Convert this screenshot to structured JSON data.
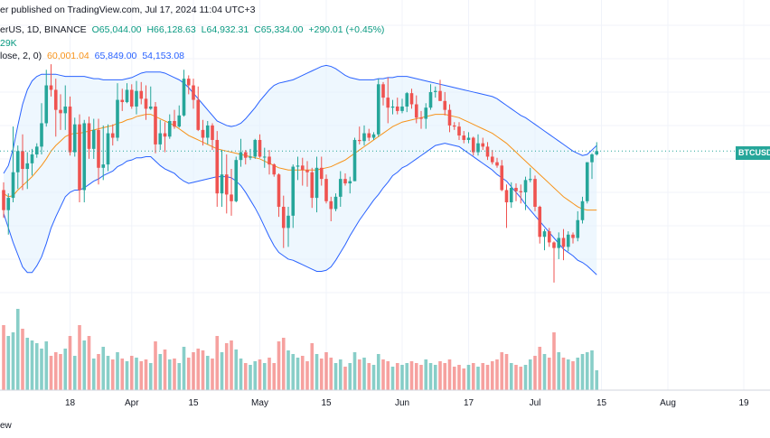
{
  "header": {
    "line1": "er published on TradingView.com, Jul 17, 2024 11:04 UTC+3",
    "line2_symbol": "erUS, 1D, BINANCE",
    "ohlc": {
      "o": "O65,044.00",
      "h": "H66,128.63",
      "l": "L64,932.31",
      "c": "C65,334.00",
      "chg": "+290.01 (+0.45%)"
    },
    "line3_volume": "29K",
    "line4_bb": "lose, 2, 0)",
    "bb_values": {
      "basis": "60,001.04",
      "upper": "65,849.00",
      "lower": "54,153.08"
    }
  },
  "price_tag": "BTCUSDT",
  "footer_text": "ew",
  "colors": {
    "up": "#26a69a",
    "down": "#ef5350",
    "basis": "#f7931a",
    "band": "#2962ff",
    "band_fill": "#e3f2fd"
  },
  "chart_data": {
    "type": "candlestick",
    "x_tick_labels": [
      "18",
      "Apr",
      "15",
      "May",
      "15",
      "Jun",
      "17",
      "Jul",
      "15",
      "Aug",
      "19"
    ],
    "candles": [
      [
        61.8,
        62.5,
        59.3,
        60.0
      ],
      [
        60.0,
        61.5,
        57.8,
        61.1
      ],
      [
        61.1,
        67.5,
        60.7,
        63.4
      ],
      [
        63.4,
        65.8,
        61.9,
        65.3
      ],
      [
        65.3,
        66.8,
        61.8,
        63.7
      ],
      [
        63.7,
        65.2,
        61.9,
        64.2
      ],
      [
        64.2,
        65.5,
        63.1,
        65.0
      ],
      [
        65.0,
        66.0,
        64.7,
        65.7
      ],
      [
        65.7,
        69.6,
        65.0,
        67.8
      ],
      [
        67.8,
        72.6,
        67.5,
        71.2
      ],
      [
        71.2,
        73.1,
        70.2,
        70.8
      ],
      [
        70.8,
        71.8,
        66.6,
        69.0
      ],
      [
        69.0,
        70.4,
        67.2,
        68.7
      ],
      [
        68.7,
        71.2,
        67.2,
        69.3
      ],
      [
        69.3,
        70.2,
        64.9,
        65.2
      ],
      [
        65.2,
        68.3,
        64.8,
        67.7
      ],
      [
        67.7,
        68.6,
        60.7,
        61.8
      ],
      [
        61.8,
        68.1,
        60.7,
        67.8
      ],
      [
        67.8,
        68.4,
        64.6,
        65.5
      ],
      [
        65.5,
        68.2,
        64.6,
        67.2
      ],
      [
        67.2,
        68.2,
        62.3,
        63.8
      ],
      [
        63.8,
        67.6,
        62.7,
        64.1
      ],
      [
        64.1,
        67.7,
        63.5,
        66.9
      ],
      [
        66.9,
        67.7,
        65.8,
        66.5
      ],
      [
        66.5,
        71.4,
        66.2,
        69.9
      ],
      [
        69.9,
        70.9,
        68.9,
        69.7
      ],
      [
        69.7,
        71.4,
        69.6,
        70.8
      ],
      [
        70.8,
        71.3,
        69.1,
        69.3
      ],
      [
        69.3,
        71.6,
        68.6,
        70.7
      ],
      [
        70.7,
        71.5,
        69.5,
        70.0
      ],
      [
        70.0,
        71.2,
        68.1,
        69.1
      ],
      [
        69.1,
        71.1,
        69.0,
        69.3
      ],
      [
        69.3,
        69.7,
        65.1,
        65.9
      ],
      [
        65.9,
        68.1,
        65.4,
        66.9
      ],
      [
        66.9,
        67.9,
        65.2,
        66.6
      ],
      [
        66.6,
        68.6,
        66.4,
        68.0
      ],
      [
        68.0,
        69.0,
        67.3,
        67.5
      ],
      [
        67.5,
        69.4,
        67.4,
        68.5
      ],
      [
        68.5,
        72.6,
        68.4,
        71.8
      ],
      [
        71.8,
        72.1,
        70.4,
        71.2
      ],
      [
        71.2,
        71.8,
        69.1,
        69.9
      ],
      [
        69.9,
        71.1,
        67.1,
        67.2
      ],
      [
        67.2,
        68.1,
        65.8,
        66.5
      ],
      [
        66.5,
        68.0,
        65.9,
        67.6
      ],
      [
        67.6,
        67.8,
        65.4,
        66.3
      ],
      [
        66.3,
        67.1,
        60.3,
        61.5
      ],
      [
        61.5,
        65.4,
        60.3,
        63.2
      ],
      [
        63.2,
        65.0,
        59.7,
        61.4
      ],
      [
        61.4,
        63.7,
        59.5,
        60.8
      ],
      [
        60.8,
        64.8,
        60.7,
        64.5
      ],
      [
        64.5,
        66.4,
        63.9,
        65.2
      ],
      [
        65.2,
        65.4,
        64.1,
        64.7
      ],
      [
        64.7,
        65.5,
        64.5,
        64.8
      ],
      [
        64.8,
        66.4,
        64.6,
        66.3
      ],
      [
        66.3,
        66.8,
        64.7,
        64.8
      ],
      [
        64.8,
        65.6,
        63.8,
        64.8
      ],
      [
        64.8,
        65.4,
        63.2,
        64.1
      ],
      [
        64.1,
        64.2,
        63.0,
        63.2
      ],
      [
        63.2,
        63.3,
        59.4,
        60.3
      ],
      [
        60.3,
        61.3,
        56.6,
        58.4
      ],
      [
        58.4,
        60.3,
        56.7,
        59.5
      ],
      [
        59.5,
        64.1,
        58.4,
        63.9
      ],
      [
        63.9,
        64.8,
        62.7,
        64.0
      ],
      [
        64.0,
        64.7,
        62.2,
        63.6
      ],
      [
        63.6,
        64.4,
        62.1,
        63.4
      ],
      [
        63.4,
        63.8,
        60.2,
        61.1
      ],
      [
        61.1,
        64.8,
        59.8,
        63.8
      ],
      [
        63.8,
        64.8,
        62.2,
        62.8
      ],
      [
        62.8,
        63.2,
        60.6,
        60.8
      ],
      [
        60.8,
        61.2,
        59.0,
        60.1
      ],
      [
        60.1,
        61.5,
        59.9,
        61.2
      ],
      [
        61.2,
        63.5,
        60.3,
        62.8
      ],
      [
        62.8,
        63.3,
        62.2,
        62.4
      ],
      [
        62.4,
        63.0,
        61.5,
        62.6
      ],
      [
        62.6,
        66.5,
        62.6,
        66.3
      ],
      [
        66.3,
        67.5,
        65.9,
        66.2
      ],
      [
        66.2,
        67.6,
        65.8,
        66.9
      ],
      [
        66.9,
        67.3,
        66.2,
        66.5
      ],
      [
        66.5,
        67.0,
        66.3,
        66.8
      ],
      [
        66.8,
        71.8,
        66.6,
        71.3
      ],
      [
        71.3,
        71.5,
        69.4,
        70.1
      ],
      [
        70.1,
        71.9,
        67.8,
        69.2
      ],
      [
        69.2,
        69.9,
        68.6,
        69.3
      ],
      [
        69.3,
        70.1,
        68.6,
        68.9
      ],
      [
        68.9,
        70.0,
        68.7,
        69.3
      ],
      [
        69.3,
        70.6,
        68.8,
        70.5
      ],
      [
        70.5,
        70.9,
        69.1,
        69.5
      ],
      [
        69.5,
        70.3,
        67.8,
        68.3
      ],
      [
        68.3,
        68.9,
        67.3,
        68.2
      ],
      [
        68.2,
        69.6,
        67.3,
        69.2
      ],
      [
        69.2,
        71.3,
        69.0,
        70.6
      ],
      [
        70.6,
        71.1,
        70.1,
        70.7
      ],
      [
        70.7,
        71.7,
        69.8,
        69.8
      ],
      [
        69.8,
        70.6,
        68.5,
        69.0
      ],
      [
        69.0,
        69.5,
        67.0,
        67.6
      ],
      [
        67.6,
        67.9,
        67.2,
        67.5
      ],
      [
        67.5,
        67.9,
        66.3,
        66.7
      ],
      [
        66.7,
        67.1,
        66.0,
        66.3
      ],
      [
        66.3,
        67.0,
        66.0,
        66.5
      ],
      [
        66.5,
        66.6,
        64.9,
        65.2
      ],
      [
        65.2,
        66.8,
        64.9,
        66.0
      ],
      [
        66.0,
        66.5,
        65.4,
        65.7
      ],
      [
        65.7,
        66.1,
        64.5,
        64.8
      ],
      [
        64.8,
        65.4,
        64.1,
        64.3
      ],
      [
        64.3,
        64.7,
        63.8,
        64.0
      ],
      [
        64.0,
        64.5,
        61.7,
        61.8
      ],
      [
        61.8,
        62.3,
        58.4,
        60.7
      ],
      [
        60.7,
        62.5,
        60.2,
        62.0
      ],
      [
        62.0,
        62.4,
        60.8,
        61.7
      ],
      [
        61.7,
        62.3,
        60.6,
        61.6
      ],
      [
        61.6,
        63.0,
        60.0,
        62.7
      ],
      [
        62.7,
        63.8,
        62.5,
        62.8
      ],
      [
        62.8,
        63.1,
        59.9,
        60.3
      ],
      [
        60.3,
        60.4,
        57.0,
        57.6
      ],
      [
        57.6,
        58.3,
        56.4,
        58.1
      ],
      [
        58.1,
        58.4,
        56.7,
        57.1
      ],
      [
        57.1,
        57.2,
        53.5,
        56.6
      ],
      [
        56.6,
        58.0,
        55.6,
        57.5
      ],
      [
        57.5,
        58.3,
        55.5,
        56.7
      ],
      [
        56.7,
        58.1,
        56.3,
        57.8
      ],
      [
        57.8,
        58.0,
        57.0,
        57.5
      ],
      [
        57.5,
        59.9,
        57.2,
        59.1
      ],
      [
        59.1,
        61.2,
        58.8,
        60.8
      ],
      [
        60.8,
        64.3,
        60.6,
        64.3
      ],
      [
        64.3,
        65.1,
        62.8,
        65.0
      ],
      [
        65.0,
        66.1,
        64.9,
        65.3
      ]
    ],
    "volumes": [
      72,
      60,
      64,
      90,
      68,
      58,
      55,
      52,
      46,
      54,
      38,
      42,
      40,
      46,
      60,
      38,
      72,
      55,
      60,
      35,
      40,
      48,
      38,
      34,
      42,
      35,
      32,
      38,
      36,
      32,
      34,
      30,
      54,
      40,
      45,
      34,
      35,
      30,
      48,
      36,
      42,
      46,
      44,
      38,
      35,
      60,
      42,
      52,
      55,
      45,
      35,
      30,
      28,
      32,
      34,
      30,
      36,
      30,
      54,
      58,
      44,
      40,
      36,
      38,
      32,
      52,
      40,
      35,
      42,
      36,
      30,
      34,
      26,
      30,
      42,
      34,
      36,
      30,
      28,
      40,
      34,
      32,
      26,
      30,
      28,
      30,
      32,
      30,
      28,
      34,
      30,
      28,
      32,
      30,
      34,
      26,
      28,
      24,
      28,
      30,
      26,
      30,
      28,
      32,
      34,
      42,
      40,
      30,
      28,
      26,
      28,
      34,
      38,
      48,
      40,
      36,
      64,
      42,
      36,
      34,
      32,
      36,
      40,
      42,
      44,
      22
    ],
    "basis": [
      61.5,
      61.2,
      61.3,
      61.8,
      62.2,
      62.6,
      63.0,
      63.5,
      64.0,
      64.6,
      65.3,
      65.8,
      66.2,
      66.6,
      66.8,
      66.9,
      66.9,
      67.0,
      67.1,
      67.2,
      67.3,
      67.4,
      67.5,
      67.6,
      67.8,
      67.9,
      68.1,
      68.2,
      68.4,
      68.5,
      68.6,
      68.6,
      68.4,
      68.2,
      68.0,
      67.8,
      67.6,
      67.3,
      67.0,
      66.7,
      66.5,
      66.3,
      66.1,
      65.9,
      65.7,
      65.5,
      65.4,
      65.3,
      65.2,
      65.1,
      65.0,
      64.9,
      64.8,
      64.7,
      64.6,
      64.4,
      64.2,
      64.0,
      63.8,
      63.7,
      63.6,
      63.6,
      63.6,
      63.6,
      63.6,
      63.6,
      63.6,
      63.7,
      63.8,
      63.9,
      64.1,
      64.3,
      64.5,
      64.8,
      65.1,
      65.4,
      65.7,
      66.0,
      66.3,
      66.6,
      66.9,
      67.2,
      67.5,
      67.7,
      67.9,
      68.0,
      68.1,
      68.2,
      68.3,
      68.4,
      68.5,
      68.6,
      68.6,
      68.6,
      68.5,
      68.4,
      68.3,
      68.1,
      67.9,
      67.7,
      67.5,
      67.3,
      67.1,
      66.9,
      66.6,
      66.3,
      66.0,
      65.6,
      65.2,
      64.8,
      64.4,
      64.0,
      63.6,
      63.2,
      62.8,
      62.4,
      62.0,
      61.6,
      61.2,
      60.9,
      60.6,
      60.3,
      60.1,
      60.0,
      60.0,
      60.0
    ],
    "upper": [
      63.3,
      64.0,
      65.5,
      67.6,
      69.5,
      70.8,
      71.6,
      72.0,
      72.2,
      72.2,
      72.2,
      72.2,
      72.1,
      72.0,
      72.0,
      72.0,
      72.0,
      72.0,
      71.9,
      71.8,
      71.8,
      71.7,
      71.7,
      71.7,
      71.7,
      71.7,
      71.8,
      71.9,
      72.1,
      72.3,
      72.4,
      72.4,
      72.4,
      72.4,
      72.3,
      72.1,
      71.9,
      71.7,
      71.4,
      71.0,
      70.5,
      70.0,
      69.5,
      69.0,
      68.5,
      68.0,
      67.8,
      67.6,
      67.5,
      67.6,
      67.8,
      68.2,
      68.7,
      69.2,
      69.8,
      70.3,
      70.8,
      71.2,
      71.4,
      71.5,
      71.6,
      71.7,
      71.9,
      72.1,
      72.3,
      72.5,
      72.7,
      72.9,
      73.0,
      72.9,
      72.7,
      72.4,
      72.1,
      71.9,
      71.8,
      71.7,
      71.7,
      71.7,
      71.7,
      71.8,
      71.8,
      71.9,
      71.9,
      72.0,
      72.0,
      72.0,
      71.9,
      71.8,
      71.7,
      71.6,
      71.5,
      71.4,
      71.3,
      71.2,
      71.1,
      71.0,
      70.9,
      70.8,
      70.7,
      70.6,
      70.5,
      70.4,
      70.3,
      70.2,
      70.0,
      69.7,
      69.4,
      69.1,
      68.8,
      68.5,
      68.3,
      68.0,
      67.7,
      67.4,
      67.1,
      66.8,
      66.5,
      66.2,
      65.9,
      65.6,
      65.3,
      65.1,
      64.9,
      65.0,
      65.4,
      65.8
    ],
    "lower": [
      59.7,
      58.4,
      57.1,
      56.0,
      54.9,
      54.4,
      54.4,
      55.0,
      55.8,
      57.0,
      58.4,
      59.4,
      60.3,
      61.2,
      61.6,
      61.8,
      61.8,
      62.0,
      62.3,
      62.6,
      62.8,
      63.1,
      63.3,
      63.5,
      63.9,
      64.1,
      64.4,
      64.5,
      64.7,
      64.7,
      64.8,
      64.8,
      64.4,
      64.0,
      63.7,
      63.5,
      63.3,
      62.9,
      62.6,
      62.4,
      62.5,
      62.6,
      62.7,
      62.8,
      62.9,
      63.0,
      63.0,
      63.0,
      62.9,
      62.6,
      62.2,
      61.6,
      60.9,
      60.2,
      59.4,
      58.5,
      57.6,
      56.8,
      56.2,
      55.9,
      55.6,
      55.5,
      55.3,
      55.1,
      54.9,
      54.7,
      54.5,
      54.5,
      54.6,
      54.9,
      55.5,
      56.2,
      56.9,
      57.7,
      58.4,
      59.1,
      59.7,
      60.3,
      60.9,
      61.4,
      62.0,
      62.5,
      63.1,
      63.4,
      63.8,
      64.0,
      64.3,
      64.6,
      64.9,
      65.2,
      65.5,
      65.8,
      65.9,
      66.0,
      65.9,
      65.8,
      65.7,
      65.4,
      65.1,
      64.8,
      64.5,
      64.2,
      63.9,
      63.6,
      63.2,
      62.9,
      62.6,
      62.1,
      61.6,
      61.1,
      60.5,
      60.0,
      59.5,
      59.0,
      58.5,
      58.0,
      57.5,
      57.0,
      56.5,
      56.2,
      55.9,
      55.5,
      55.3,
      55.0,
      54.6,
      54.2
    ]
  }
}
